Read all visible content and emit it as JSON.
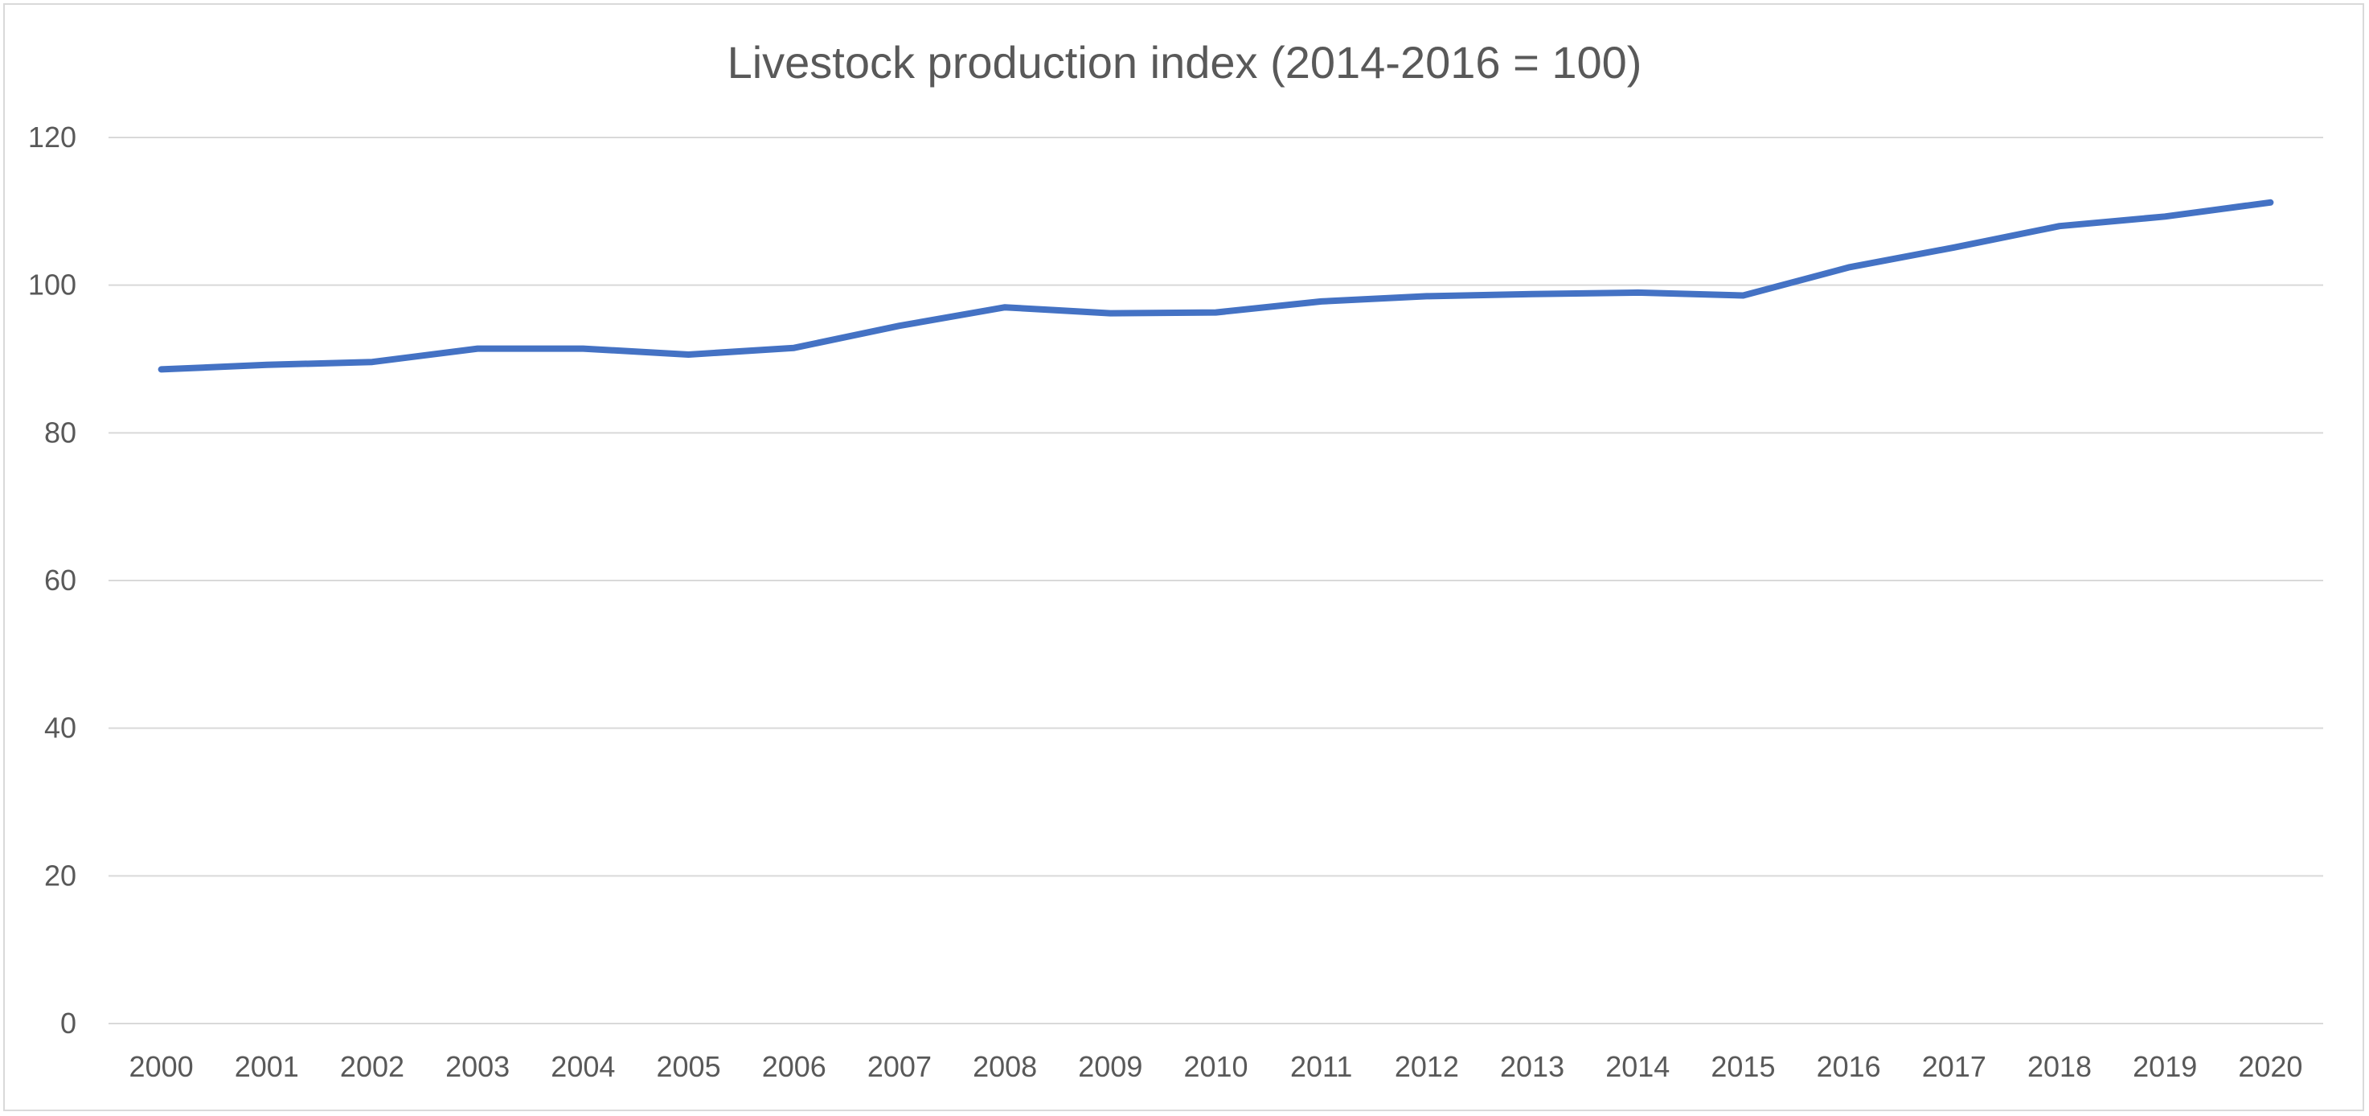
{
  "chart_data": {
    "type": "line",
    "title": "Livestock production index (2014-2016 = 100)",
    "xlabel": "",
    "ylabel": "",
    "categories": [
      "2000",
      "2001",
      "2002",
      "2003",
      "2004",
      "2005",
      "2006",
      "2007",
      "2008",
      "2009",
      "2010",
      "2011",
      "2012",
      "2013",
      "2014",
      "2015",
      "2016",
      "2017",
      "2018",
      "2019",
      "2020"
    ],
    "series": [
      {
        "values": [
          88.6,
          89.2,
          89.6,
          91.4,
          91.4,
          90.6,
          91.5,
          94.5,
          97.0,
          96.2,
          96.3,
          97.8,
          98.5,
          98.8,
          99.0,
          98.6,
          102.4,
          105.1,
          108.0,
          109.3,
          111.2
        ]
      }
    ],
    "ylim": [
      0,
      120
    ],
    "yticks": [
      "0",
      "20",
      "40",
      "60",
      "80",
      "100",
      "120"
    ],
    "grid": true,
    "legend": "none",
    "line_color": "#4472C4",
    "gridline_color": "#d9d9d9",
    "text_color": "#595959"
  }
}
